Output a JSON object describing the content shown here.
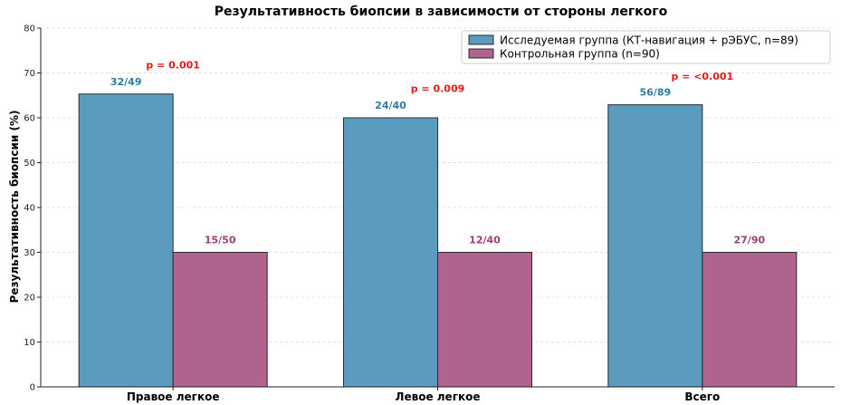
{
  "chart_data": {
    "type": "bar",
    "title": "Результативность биопсии в зависимости от стороны легкого",
    "ylabel": "Результативность биопсии (%)",
    "xlabel": "",
    "ylim": [
      0,
      80
    ],
    "yticks": [
      0,
      10,
      20,
      30,
      40,
      50,
      60,
      70,
      80
    ],
    "grid": true,
    "legend_position": "top-right",
    "categories": [
      "Правое легкое",
      "Левое легкое",
      "Всего"
    ],
    "series": [
      {
        "name": "Исследуемая группа (КТ-навигация + рЭБУС, n=89)",
        "color": "#5b9bbd",
        "label_color": "#2e7ca6",
        "values": [
          65.3,
          60.0,
          62.9
        ],
        "labels": [
          "32/49",
          "24/40",
          "56/89"
        ]
      },
      {
        "name": "Контрольная группа (n=90)",
        "color": "#b0638c",
        "label_color": "#9c3f6e",
        "values": [
          30.0,
          30.0,
          30.0
        ],
        "labels": [
          "15/50",
          "12/40",
          "27/90"
        ]
      }
    ],
    "annotations": [
      {
        "text": "p = 0.001",
        "category": 0,
        "y": 71
      },
      {
        "text": "p = 0.009",
        "category": 1,
        "y": 65.8
      },
      {
        "text": "p = <0.001",
        "category": 2,
        "y": 68.5
      }
    ],
    "annotation_color": "#e31a1c"
  }
}
